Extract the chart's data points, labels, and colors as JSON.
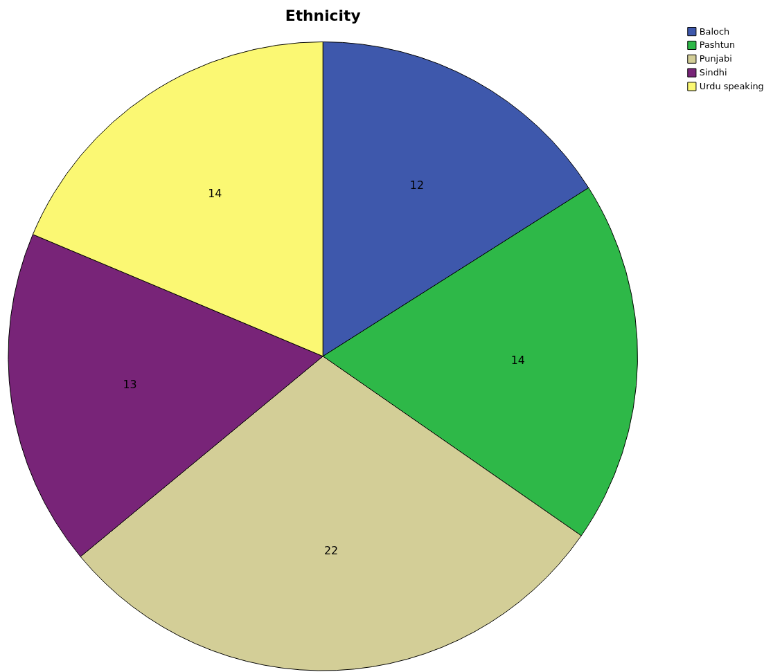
{
  "chart_data": {
    "type": "pie",
    "title": "Ethnicity",
    "categories": [
      "Baloch",
      "Pashtun",
      "Punjabi",
      "Sindhi",
      "Urdu speaking"
    ],
    "values": [
      12,
      14,
      22,
      13,
      14
    ],
    "colors": [
      "#3e58ac",
      "#2eb848",
      "#d3ce97",
      "#782478",
      "#fbf873"
    ],
    "data_labels": true,
    "legend": "top right"
  }
}
